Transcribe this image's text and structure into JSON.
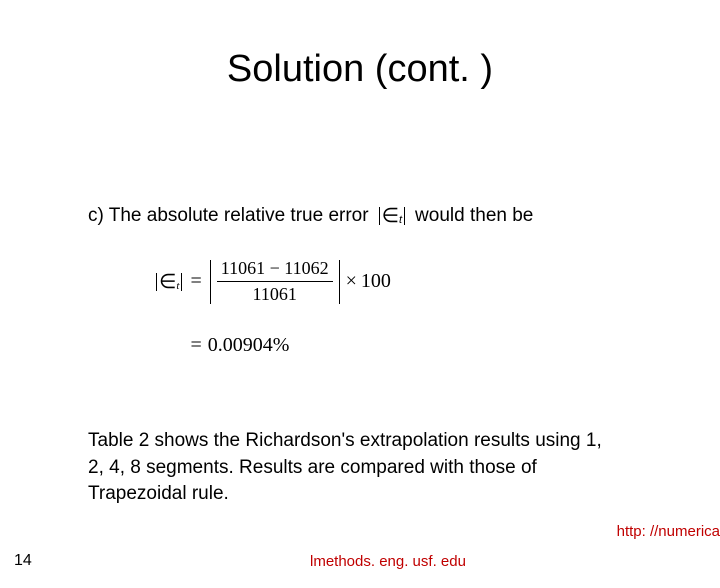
{
  "title": "Solution (cont. )",
  "line_c_prefix": "c)  The absolute relative true error",
  "line_c_suffix": "would then be",
  "epsilon_symbol": "∈",
  "epsilon_sub": "t",
  "formula": {
    "numerator": "11061 − 11062",
    "denominator": "11061",
    "multiplier": "100",
    "result": "0.00904%",
    "eq": "=",
    "times": "×"
  },
  "paragraph": "Table 2 shows the Richardson's extrapolation results using 1, 2, 4, 8 segments.  Results are compared with those of Trapezoidal rule.",
  "page_number": "14",
  "footer_url_center": "lmethods. eng. usf. edu",
  "footer_url_right": "http: //numerica",
  "colors": {
    "text": "#000000",
    "link": "#c00000",
    "background": "#ffffff"
  },
  "fonts": {
    "title_size": 38,
    "body_size": 19,
    "formula_size": 20,
    "footer_size": 15
  }
}
